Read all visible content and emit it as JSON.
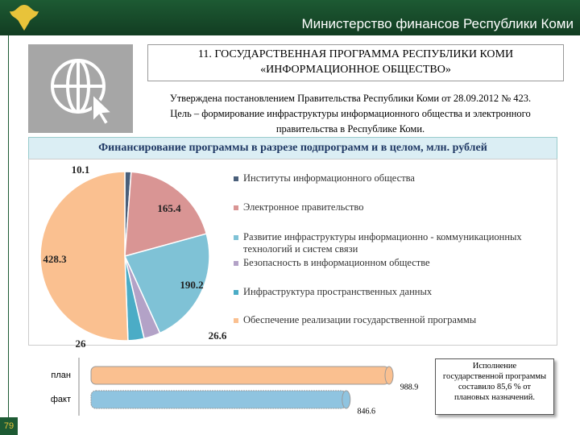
{
  "header": {
    "title": "Министерство финансов Республики Коми",
    "page_number": "79"
  },
  "program": {
    "title_lines": [
      "11. ГОСУДАРСТВЕННАЯ ПРОГРАММА РЕСПУБЛИКИ КОМИ",
      "«ИНФОРМАЦИОННОЕ ОБЩЕСТВО»"
    ],
    "description_lines": [
      "Утверждена постановлением Правительства Республики Коми от 28.09.2012 № 423.",
      "Цель – формирование инфраструктуры информационного общества и электронного",
      "правительства в Республике Коми."
    ]
  },
  "chart_data": [
    {
      "type": "pie",
      "title": "Финансирование программы в разрезе подпрограмм и в целом, млн. рублей",
      "categories": [
        "Институты информационного общества",
        "Электронное правительство",
        "Развитие инфраструктуры информационно - коммуникационных технологий и систем связи",
        "Безопасность в информационном обществе",
        "Инфраструктура пространственных данных",
        "Обеспечение реализации государственной программы"
      ],
      "values": [
        10.1,
        165.4,
        190.2,
        26.6,
        26,
        428.3
      ],
      "colors": [
        "#4a5f7a",
        "#d99594",
        "#7fc2d6",
        "#b3a2c7",
        "#4bacc6",
        "#fac090"
      ]
    },
    {
      "type": "bar",
      "orientation": "horizontal",
      "categories": [
        "план",
        "факт"
      ],
      "values": [
        988.9,
        846.6
      ],
      "colors": [
        "#fac090",
        "#8fc4e0"
      ]
    }
  ],
  "note": "Исполнение государственной программы составило 85,6 % от плановых назначений."
}
